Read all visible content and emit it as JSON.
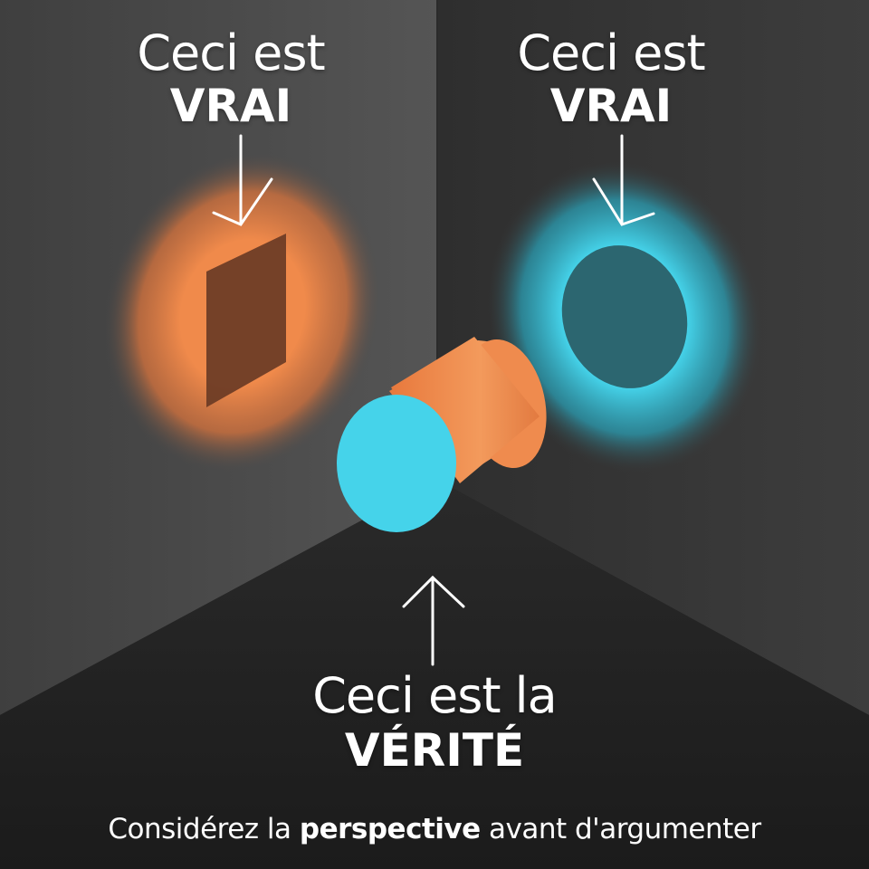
{
  "labels": {
    "left": {
      "line1": "Ceci est",
      "line2": "VRAI"
    },
    "right": {
      "line1": "Ceci est",
      "line2": "VRAI"
    },
    "bottom": {
      "line1": "Ceci est la",
      "line2": "VÉRITÉ"
    }
  },
  "caption": {
    "before": "Considérez la",
    "emphasis": "perspective",
    "after": "avant d'argumenter"
  },
  "colors": {
    "orange": "#f08a4b",
    "cyan": "#45d3ea",
    "shadow_rect": "#6a3b25",
    "shadow_circle": "#2c6670",
    "wall_left": "#4a4a4a",
    "wall_right": "#3a3a3a",
    "floor": "#222222",
    "text": "#ffffff"
  }
}
